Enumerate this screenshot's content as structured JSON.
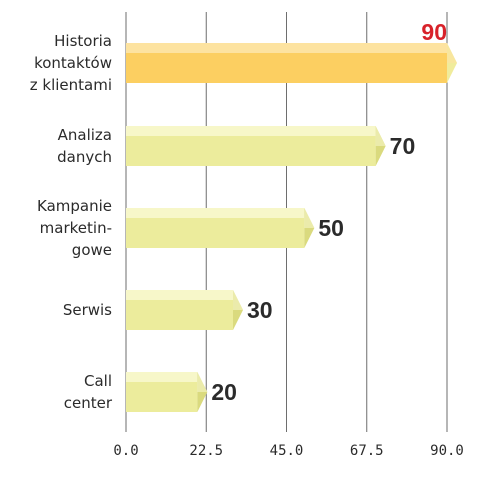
{
  "chart_data": {
    "type": "bar",
    "orientation": "horizontal",
    "categories": [
      [
        "Historia",
        "kontaktów",
        "z klientami"
      ],
      [
        "Analiza",
        "danych"
      ],
      [
        "Kampanie",
        "marketin-",
        "gowe"
      ],
      [
        "Serwis"
      ],
      [
        "Call",
        "center"
      ]
    ],
    "values": [
      90,
      70,
      50,
      30,
      20
    ],
    "value_labels": [
      "90",
      "70",
      "50",
      "30",
      "20"
    ],
    "xlim": [
      0,
      90
    ],
    "x_ticks": [
      "0.0",
      "22.5",
      "45.0",
      "67.5",
      "90.0"
    ],
    "x_tick_values": [
      0,
      22.5,
      45,
      67.5,
      90
    ],
    "grid": true,
    "highlight_index": 0,
    "colors": {
      "bar_front": "#ecec9c",
      "bar_top": "#f7f7c9",
      "bar_side": "#dada7e",
      "highlight_front": "#fccf61",
      "highlight_top": "#fde3a0",
      "highlight_side": "#f0ec9c",
      "highlight_value": "#d8222a",
      "value": "#2b2b2b",
      "grid": "#6e6e6e"
    }
  }
}
